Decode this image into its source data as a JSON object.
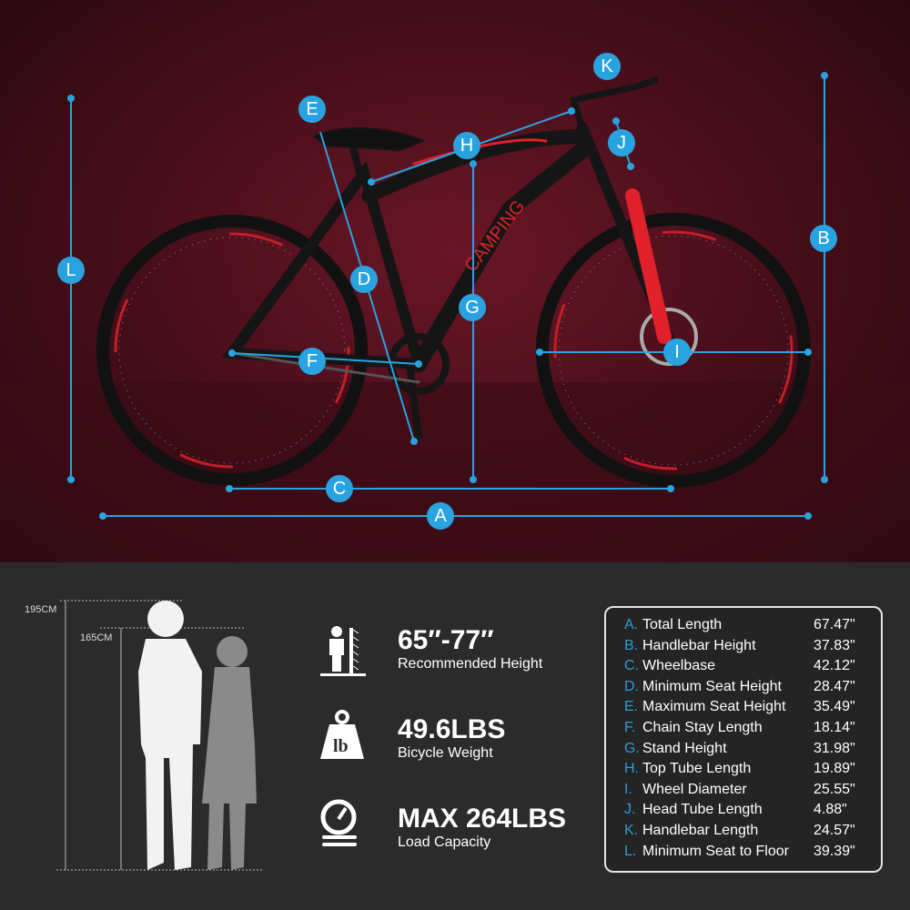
{
  "logo_text": "CAMPING",
  "markers": {
    "A": "A",
    "B": "B",
    "C": "C",
    "D": "D",
    "E": "E",
    "F": "F",
    "G": "G",
    "H": "H",
    "I": "I",
    "J": "J",
    "K": "K",
    "L": "L"
  },
  "heights": {
    "tall": "195CM",
    "short": "165CM"
  },
  "features": [
    {
      "icon": "person-height-icon",
      "value": "65″-77″",
      "label": "Recommended Height"
    },
    {
      "icon": "weight-lb-icon",
      "value": "49.6LBS",
      "label": "Bicycle Weight"
    },
    {
      "icon": "scale-gauge-icon",
      "value": "MAX 264LBS",
      "label": "Load Capacity"
    }
  ],
  "specs": [
    {
      "key": "A.",
      "name": "Total Length",
      "value": "67.47\""
    },
    {
      "key": "B.",
      "name": "Handlebar Height",
      "value": "37.83\""
    },
    {
      "key": "C.",
      "name": "Wheelbase",
      "value": "42.12\""
    },
    {
      "key": "D.",
      "name": "Minimum Seat Height",
      "value": "28.47\""
    },
    {
      "key": "E.",
      "name": "Maximum Seat Height",
      "value": "35.49\""
    },
    {
      "key": "F.",
      "name": "Chain Stay Length",
      "value": "18.14\""
    },
    {
      "key": "G.",
      "name": "Stand Height",
      "value": "31.98\""
    },
    {
      "key": "H.",
      "name": "Top Tube Length",
      "value": "19.89\""
    },
    {
      "key": "I.",
      "name": "Wheel Diameter",
      "value": "25.55\""
    },
    {
      "key": "J.",
      "name": "Head Tube Length",
      "value": "4.88\""
    },
    {
      "key": "K.",
      "name": "Handlebar Length",
      "value": "24.57\""
    },
    {
      "key": "L.",
      "name": "Minimum Seat to Floor",
      "value": "39.39\""
    }
  ],
  "colors": {
    "accent": "#29a3e0",
    "frame_red": "#e0202a"
  }
}
